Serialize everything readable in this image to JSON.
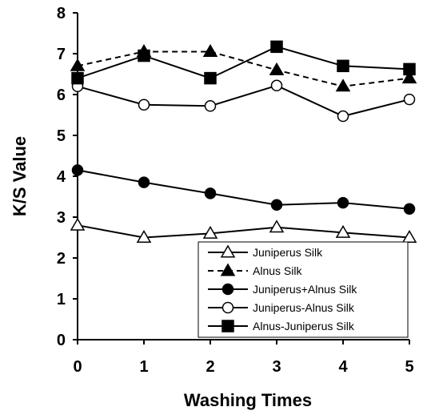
{
  "chart_data": {
    "type": "line",
    "xlabel": "Washing Times",
    "ylabel": "K/S Value",
    "x": [
      0,
      1,
      2,
      3,
      4,
      5
    ],
    "xlim": [
      0,
      5
    ],
    "ylim": [
      0,
      8
    ],
    "xticks": [
      "0",
      "1",
      "2",
      "3",
      "4",
      "5"
    ],
    "yticks": [
      "0",
      "1",
      "2",
      "3",
      "4",
      "5",
      "6",
      "7",
      "8"
    ],
    "grid": false,
    "legend_position": "bottom-right",
    "series": [
      {
        "name": "Juniperus Silk",
        "values": [
          2.8,
          2.5,
          2.6,
          2.75,
          2.62,
          2.5
        ],
        "marker": "triangle-open",
        "dash": "solid",
        "color": "#000000"
      },
      {
        "name": "Alnus Silk",
        "values": [
          6.7,
          7.05,
          7.05,
          6.6,
          6.2,
          6.4
        ],
        "marker": "triangle-filled",
        "dash": "dashed",
        "color": "#000000"
      },
      {
        "name": "Juniperus+Alnus Silk",
        "values": [
          4.15,
          3.85,
          3.58,
          3.3,
          3.35,
          3.2
        ],
        "marker": "circle-filled",
        "dash": "solid",
        "color": "#000000"
      },
      {
        "name": "Juniperus-Alnus Silk",
        "values": [
          6.2,
          5.75,
          5.72,
          6.22,
          5.47,
          5.88
        ],
        "marker": "circle-open",
        "dash": "solid",
        "color": "#000000"
      },
      {
        "name": "Alnus-Juniperus Silk",
        "values": [
          6.4,
          6.95,
          6.4,
          7.17,
          6.7,
          6.62
        ],
        "marker": "square-filled",
        "dash": "solid",
        "color": "#000000"
      }
    ]
  }
}
